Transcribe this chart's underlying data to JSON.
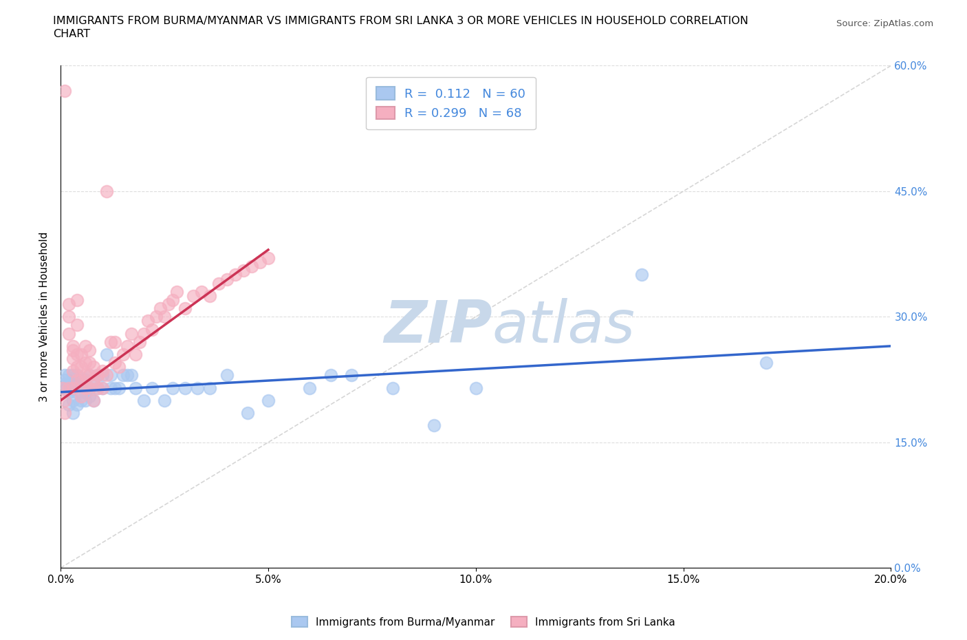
{
  "title_line1": "IMMIGRANTS FROM BURMA/MYANMAR VS IMMIGRANTS FROM SRI LANKA 3 OR MORE VEHICLES IN HOUSEHOLD CORRELATION",
  "title_line2": "CHART",
  "source": "Source: ZipAtlas.com",
  "ylabel": "3 or more Vehicles in Household",
  "xlim": [
    0.0,
    0.2
  ],
  "ylim": [
    0.0,
    0.6
  ],
  "xticks": [
    0.0,
    0.05,
    0.1,
    0.15,
    0.2
  ],
  "xticklabels": [
    "0.0%",
    "5.0%",
    "10.0%",
    "15.0%",
    "20.0%"
  ],
  "yticks": [
    0.0,
    0.15,
    0.3,
    0.45,
    0.6
  ],
  "yticklabels": [
    "0.0%",
    "15.0%",
    "30.0%",
    "45.0%",
    "60.0%"
  ],
  "legend_R_blue": "0.112",
  "legend_N_blue": "60",
  "legend_R_pink": "0.299",
  "legend_N_pink": "68",
  "blue_color": "#aac8f0",
  "pink_color": "#f5afc0",
  "blue_line_color": "#3366cc",
  "pink_line_color": "#cc3355",
  "diag_color": "#cccccc",
  "grid_color": "#dddddd",
  "watermark_color": "#c8d8ea",
  "tick_color": "#4488dd",
  "legend1_label": "Immigrants from Burma/Myanmar",
  "legend2_label": "Immigrants from Sri Lanka",
  "blue_scatter_x": [
    0.0005,
    0.001,
    0.001,
    0.001,
    0.002,
    0.002,
    0.002,
    0.002,
    0.003,
    0.003,
    0.003,
    0.003,
    0.003,
    0.004,
    0.004,
    0.004,
    0.004,
    0.005,
    0.005,
    0.005,
    0.005,
    0.006,
    0.006,
    0.006,
    0.007,
    0.007,
    0.007,
    0.008,
    0.008,
    0.009,
    0.009,
    0.01,
    0.01,
    0.011,
    0.012,
    0.012,
    0.013,
    0.014,
    0.015,
    0.016,
    0.017,
    0.018,
    0.02,
    0.022,
    0.025,
    0.027,
    0.03,
    0.033,
    0.036,
    0.04,
    0.045,
    0.05,
    0.06,
    0.065,
    0.07,
    0.08,
    0.09,
    0.1,
    0.14,
    0.17
  ],
  "blue_scatter_y": [
    0.215,
    0.22,
    0.225,
    0.23,
    0.195,
    0.21,
    0.22,
    0.23,
    0.185,
    0.2,
    0.215,
    0.22,
    0.23,
    0.195,
    0.21,
    0.22,
    0.23,
    0.2,
    0.21,
    0.22,
    0.225,
    0.2,
    0.21,
    0.225,
    0.205,
    0.215,
    0.23,
    0.2,
    0.22,
    0.215,
    0.23,
    0.215,
    0.23,
    0.255,
    0.215,
    0.23,
    0.215,
    0.215,
    0.23,
    0.23,
    0.23,
    0.215,
    0.2,
    0.215,
    0.2,
    0.215,
    0.215,
    0.215,
    0.215,
    0.23,
    0.185,
    0.2,
    0.215,
    0.23,
    0.23,
    0.215,
    0.17,
    0.215,
    0.35,
    0.245
  ],
  "pink_scatter_x": [
    0.0005,
    0.001,
    0.001,
    0.001,
    0.002,
    0.002,
    0.002,
    0.002,
    0.003,
    0.003,
    0.003,
    0.003,
    0.003,
    0.004,
    0.004,
    0.004,
    0.004,
    0.004,
    0.005,
    0.005,
    0.005,
    0.005,
    0.006,
    0.006,
    0.006,
    0.006,
    0.007,
    0.007,
    0.007,
    0.007,
    0.008,
    0.008,
    0.008,
    0.009,
    0.009,
    0.01,
    0.01,
    0.011,
    0.011,
    0.012,
    0.013,
    0.013,
    0.014,
    0.015,
    0.016,
    0.017,
    0.018,
    0.019,
    0.02,
    0.021,
    0.022,
    0.023,
    0.024,
    0.025,
    0.026,
    0.027,
    0.028,
    0.03,
    0.032,
    0.034,
    0.036,
    0.038,
    0.04,
    0.042,
    0.044,
    0.046,
    0.048,
    0.05
  ],
  "pink_scatter_y": [
    0.215,
    0.185,
    0.2,
    0.57,
    0.28,
    0.3,
    0.315,
    0.215,
    0.25,
    0.265,
    0.215,
    0.235,
    0.26,
    0.225,
    0.24,
    0.255,
    0.29,
    0.32,
    0.205,
    0.225,
    0.24,
    0.255,
    0.215,
    0.23,
    0.245,
    0.265,
    0.215,
    0.23,
    0.245,
    0.26,
    0.2,
    0.225,
    0.24,
    0.215,
    0.23,
    0.215,
    0.235,
    0.45,
    0.23,
    0.27,
    0.245,
    0.27,
    0.24,
    0.255,
    0.265,
    0.28,
    0.255,
    0.27,
    0.28,
    0.295,
    0.285,
    0.3,
    0.31,
    0.3,
    0.315,
    0.32,
    0.33,
    0.31,
    0.325,
    0.33,
    0.325,
    0.34,
    0.345,
    0.35,
    0.355,
    0.36,
    0.365,
    0.37
  ],
  "blue_line_x0": 0.0,
  "blue_line_x1": 0.2,
  "blue_line_y0": 0.21,
  "blue_line_y1": 0.265,
  "pink_line_x0": 0.0,
  "pink_line_x1": 0.05,
  "pink_line_y0": 0.2,
  "pink_line_y1": 0.38
}
